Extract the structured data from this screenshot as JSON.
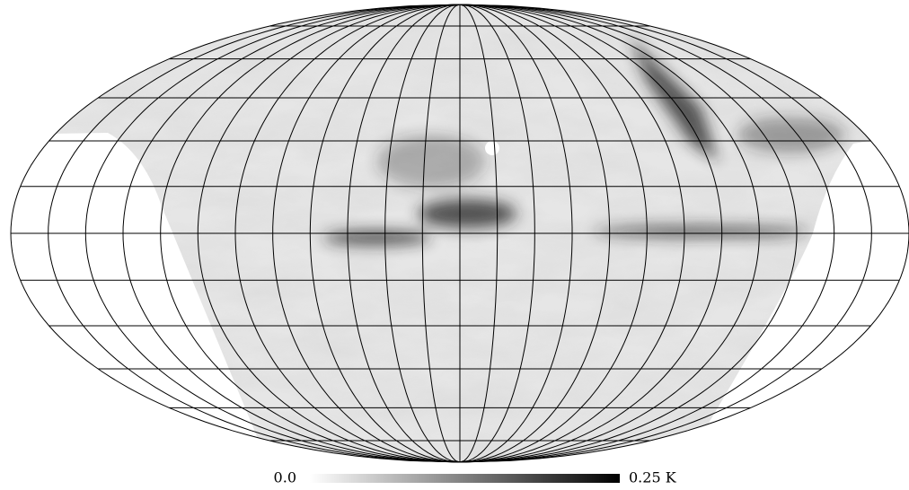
{
  "colorbar": {
    "range": [
      0,
      0.25
    ],
    "ticks": [
      {
        "value": 0,
        "label": "0.0"
      },
      {
        "value": 0.25,
        "label": "0.25 K"
      }
    ]
  }
}
